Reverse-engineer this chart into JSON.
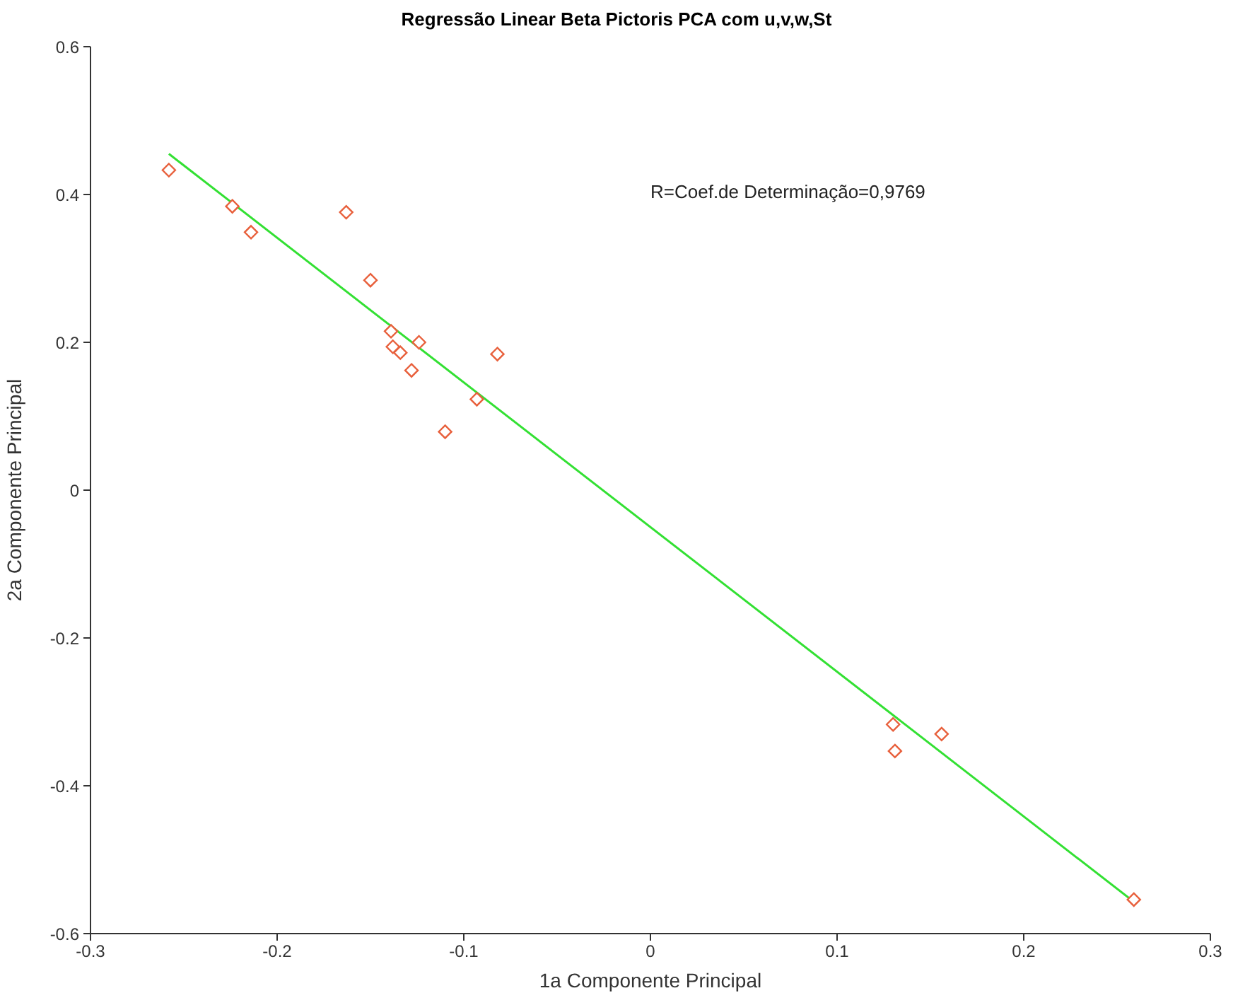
{
  "chart_data": {
    "type": "scatter",
    "title": "Regressão Linear Beta Pictoris PCA com u,v,w,St",
    "xlabel": "1a Componente Principal",
    "ylabel": "2a Componente Principal",
    "annotations": [
      "R=Coef.de Determinação=0,9769"
    ],
    "xlim": [
      -0.3,
      0.3
    ],
    "xticks": [
      -0.3,
      -0.2,
      -0.1,
      0,
      0.1,
      0.2,
      0.3
    ],
    "ylim": [
      -0.6,
      0.6
    ],
    "yticks": [
      -0.6,
      -0.4,
      -0.2,
      0,
      0.2,
      0.4,
      0.6
    ],
    "grid": false,
    "legend": false,
    "series": [
      {
        "type": "line",
        "color": "#33e033",
        "x": [
          -0.258,
          0.258
        ],
        "values": [
          0.455,
          -0.555
        ]
      },
      {
        "color": "#e8603c",
        "marker": "diamond",
        "x": [
          -0.258,
          -0.224,
          -0.214,
          -0.163,
          -0.15,
          -0.139,
          -0.138,
          -0.134,
          -0.124,
          -0.128,
          -0.11,
          -0.093,
          -0.082,
          0.13,
          0.131,
          0.156,
          0.259
        ],
        "values": [
          0.433,
          0.384,
          0.349,
          0.376,
          0.284,
          0.215,
          0.194,
          0.186,
          0.2,
          0.162,
          0.079,
          0.123,
          0.184,
          -0.317,
          -0.353,
          -0.33,
          -0.554
        ]
      }
    ]
  }
}
